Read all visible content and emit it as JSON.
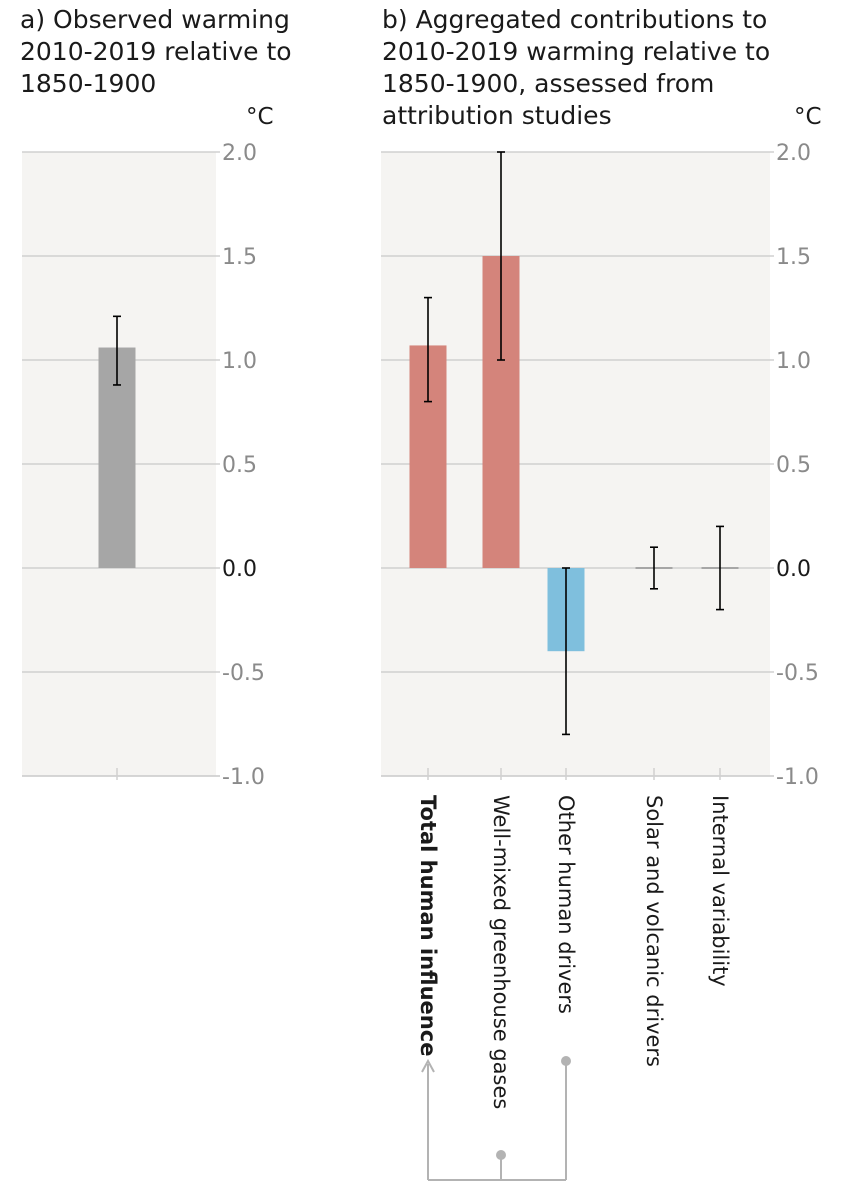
{
  "panel_a": {
    "title": "a) Observed warming 2010-2019 relative to 1850-1900",
    "unit": "°C"
  },
  "panel_b": {
    "title": "b) Aggregated contributions to 2010-2019 warming relative to 1850-1900, assessed from attribution studies",
    "unit": "°C"
  },
  "colors": {
    "background": "#f5f4f2",
    "observed": "#a6a6a6",
    "warming": "#d4847b",
    "cooling": "#7fbfdd",
    "grid": "#d0d0d0",
    "bracket": "#b3b3b3"
  },
  "chart_data": [
    {
      "type": "bar",
      "title": "a) Observed warming 2010-2019 relative to 1850-1900",
      "ylabel": "°C",
      "ylim": [
        -1.0,
        2.0
      ],
      "yticks": [
        "2.0",
        "1.5",
        "1.0",
        "0.5",
        "0.0",
        "-0.5",
        "-1.0"
      ],
      "grid": true,
      "categories": [
        ""
      ],
      "values": [
        1.06
      ],
      "error_low": [
        0.88
      ],
      "error_high": [
        1.21
      ],
      "colors": [
        "#a6a6a6"
      ]
    },
    {
      "type": "bar",
      "title": "b) Aggregated contributions to 2010-2019 warming relative to 1850-1900, assessed from attribution studies",
      "ylabel": "°C",
      "ylim": [
        -1.0,
        2.0
      ],
      "yticks": [
        "2.0",
        "1.5",
        "1.0",
        "0.5",
        "0.0",
        "-0.5",
        "-1.0"
      ],
      "grid": true,
      "categories": [
        "Total human influence",
        "Well-mixed greenhouse gases",
        "Other human drivers",
        "Solar and volcanic drivers",
        "Internal variability"
      ],
      "values": [
        1.07,
        1.5,
        -0.4,
        0.0,
        0.0
      ],
      "error_low": [
        0.8,
        1.0,
        -0.8,
        -0.1,
        -0.2
      ],
      "error_high": [
        1.3,
        2.0,
        0.0,
        0.1,
        0.2
      ],
      "colors": [
        "#d4847b",
        "#d4847b",
        "#7fbfdd",
        "#a6a6a6",
        "#a6a6a6"
      ],
      "annotation": "Total human influence = Well-mixed greenhouse gases + Other human drivers"
    }
  ]
}
